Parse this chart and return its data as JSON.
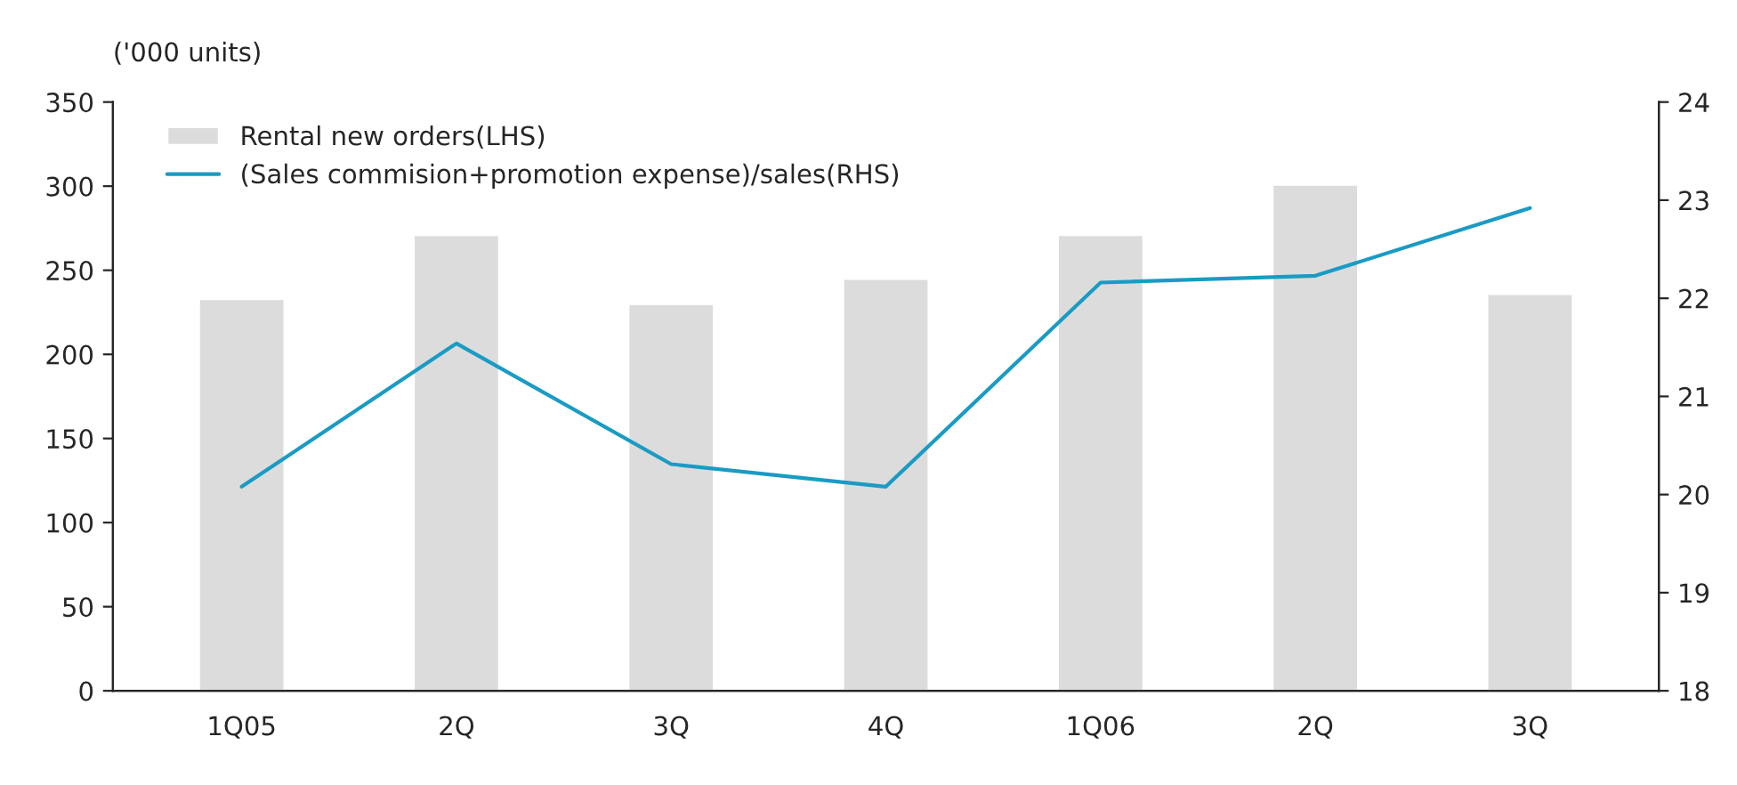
{
  "chart_data": {
    "type": "bar",
    "ylabel": "('000 units)",
    "categories": [
      "1Q05",
      "2Q",
      "3Q",
      "4Q",
      "1Q06",
      "2Q",
      "3Q"
    ],
    "series": [
      {
        "name": "Rental new orders(LHS)",
        "color": "#dcdcdc",
        "values": [
          233,
          271,
          230,
          245,
          271,
          301,
          236
        ]
      },
      {
        "name": "(Sales commision+promotion expense)/sales(RHS)",
        "type": "line",
        "axis": "y2",
        "color": "#1a9bc4",
        "values": [
          20.08,
          21.54,
          20.31,
          20.08,
          22.16,
          22.23,
          22.92
        ]
      }
    ],
    "ylim": [
      0,
      350
    ],
    "yticks": [
      0,
      50,
      100,
      150,
      200,
      250,
      300,
      350
    ],
    "y2lim": [
      18,
      24
    ],
    "y2ticks": [
      18,
      19,
      20,
      21,
      22,
      23,
      24
    ],
    "grid": false,
    "legend": "top left",
    "marker": "none",
    "line_style": "solid"
  }
}
